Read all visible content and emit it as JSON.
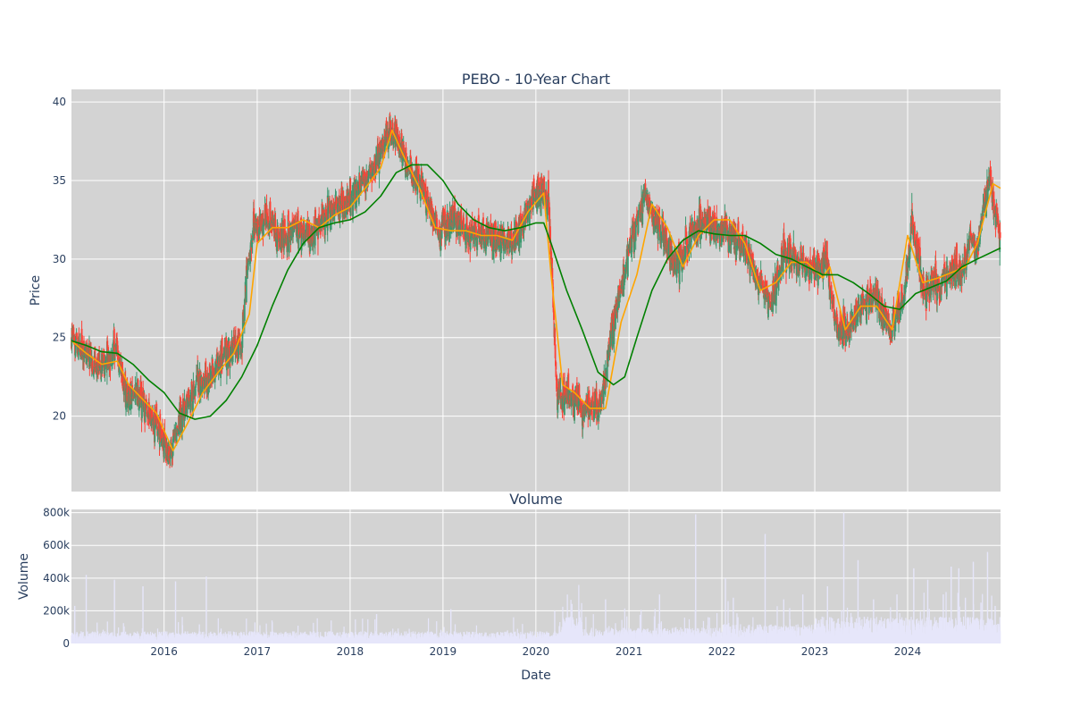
{
  "chart_data": [
    {
      "type": "candlestick",
      "title": "PEBO - 10-Year Chart",
      "ylabel": "Price",
      "ylim": [
        15.2,
        40.8
      ],
      "yticks": [
        20,
        25,
        30,
        35,
        40
      ],
      "xlim": [
        "2015-01-02",
        "2024-12-31"
      ],
      "xticks": [
        "2016",
        "2017",
        "2018",
        "2019",
        "2020",
        "2021",
        "2022",
        "2023",
        "2024"
      ],
      "grid": true,
      "increasing_color": "#3d9970",
      "decreasing_color": "#ff4136",
      "series": [
        {
          "name": "",
          "kind": "price_close",
          "x": [
            "2015-01-02",
            "2015-03-01",
            "2015-05-01",
            "2015-07-01",
            "2015-08-01",
            "2015-10-01",
            "2015-12-01",
            "2016-01-20",
            "2016-03-01",
            "2016-05-01",
            "2016-07-01",
            "2016-09-01",
            "2016-11-01",
            "2016-11-15",
            "2016-12-15",
            "2017-02-01",
            "2017-04-01",
            "2017-06-01",
            "2017-08-01",
            "2017-10-01",
            "2017-12-01",
            "2018-02-01",
            "2018-04-01",
            "2018-06-01",
            "2018-07-01",
            "2018-08-15",
            "2018-10-15",
            "2018-12-20",
            "2019-02-01",
            "2019-04-01",
            "2019-06-01",
            "2019-08-01",
            "2019-10-01",
            "2019-12-01",
            "2020-01-15",
            "2020-02-20",
            "2020-03-10",
            "2020-03-23",
            "2020-05-01",
            "2020-07-01",
            "2020-09-01",
            "2020-09-25",
            "2020-11-01",
            "2021-01-01",
            "2021-03-01",
            "2021-03-15",
            "2021-05-01",
            "2021-07-01",
            "2021-08-01",
            "2021-10-01",
            "2021-12-01",
            "2022-02-01",
            "2022-04-01",
            "2022-06-01",
            "2022-07-15",
            "2022-09-01",
            "2022-11-01",
            "2023-01-01",
            "2023-02-15",
            "2023-04-01",
            "2023-05-15",
            "2023-07-01",
            "2023-09-01",
            "2023-10-25",
            "2023-12-15",
            "2024-01-20",
            "2024-03-01",
            "2024-05-01",
            "2024-07-01",
            "2024-08-01",
            "2024-09-01",
            "2024-10-01",
            "2024-11-15",
            "2024-12-31"
          ],
          "y": [
            25.0,
            23.8,
            23.2,
            24.3,
            21.5,
            21.0,
            19.5,
            17.5,
            19.8,
            21.8,
            22.5,
            24.3,
            24.5,
            28.0,
            31.8,
            32.5,
            31.5,
            31.8,
            31.5,
            33.0,
            33.5,
            34.5,
            35.8,
            37.8,
            38.0,
            36.0,
            34.5,
            31.5,
            32.5,
            31.8,
            31.5,
            31.5,
            31.0,
            33.0,
            34.5,
            33.8,
            27.0,
            21.5,
            21.5,
            20.5,
            20.5,
            22.0,
            26.0,
            30.5,
            34.0,
            33.5,
            32.0,
            29.5,
            30.5,
            32.5,
            32.0,
            31.5,
            30.5,
            28.5,
            27.0,
            30.5,
            29.5,
            29.5,
            30.0,
            25.5,
            25.5,
            27.0,
            27.5,
            25.5,
            27.5,
            32.5,
            28.0,
            28.5,
            29.5,
            29.2,
            31.5,
            30.5,
            35.2,
            31.5
          ]
        },
        {
          "name": "",
          "kind": "short_ma",
          "color": "#ffa500",
          "x": [
            "2015-01-02",
            "2015-03-01",
            "2015-05-01",
            "2015-07-01",
            "2015-08-15",
            "2015-10-01",
            "2015-12-01",
            "2016-02-05",
            "2016-04-01",
            "2016-06-01",
            "2016-08-01",
            "2016-10-01",
            "2016-12-01",
            "2017-01-01",
            "2017-03-01",
            "2017-05-01",
            "2017-07-01",
            "2017-09-01",
            "2017-11-01",
            "2018-01-01",
            "2018-03-01",
            "2018-05-01",
            "2018-06-15",
            "2018-08-01",
            "2018-10-01",
            "2018-12-01",
            "2019-02-01",
            "2019-04-01",
            "2019-06-01",
            "2019-08-01",
            "2019-10-01",
            "2019-12-01",
            "2020-02-01",
            "2020-03-01",
            "2020-04-15",
            "2020-06-01",
            "2020-08-01",
            "2020-10-01",
            "2020-12-01",
            "2021-02-01",
            "2021-04-01",
            "2021-06-01",
            "2021-08-01",
            "2021-10-01",
            "2021-12-01",
            "2022-02-01",
            "2022-04-01",
            "2022-06-01",
            "2022-08-01",
            "2022-10-01",
            "2022-12-01",
            "2023-02-01",
            "2023-03-01",
            "2023-05-01",
            "2023-07-01",
            "2023-09-01",
            "2023-11-01",
            "2024-01-01",
            "2024-03-01",
            "2024-05-01",
            "2024-07-01",
            "2024-08-15",
            "2024-10-01",
            "2024-12-01",
            "2024-12-31"
          ],
          "y": [
            24.8,
            24.0,
            23.3,
            23.5,
            22.0,
            21.2,
            20.2,
            17.8,
            19.5,
            21.5,
            22.8,
            24.0,
            26.5,
            31.0,
            32.0,
            32.0,
            32.5,
            32.0,
            32.8,
            33.3,
            34.5,
            35.8,
            38.2,
            36.5,
            34.5,
            32.0,
            31.8,
            31.8,
            31.5,
            31.5,
            31.2,
            33.0,
            34.2,
            29.0,
            22.0,
            21.5,
            20.5,
            20.5,
            26.0,
            29.0,
            33.5,
            32.0,
            29.5,
            31.5,
            32.5,
            32.5,
            31.0,
            28.0,
            28.5,
            29.8,
            29.8,
            28.8,
            29.5,
            25.5,
            27.0,
            27.0,
            25.5,
            31.5,
            28.5,
            28.8,
            29.2,
            29.5,
            31.0,
            34.8,
            34.5
          ]
        },
        {
          "name": "",
          "kind": "long_ma",
          "color": "#008000",
          "x": [
            "2015-01-02",
            "2015-03-01",
            "2015-05-01",
            "2015-07-01",
            "2015-09-01",
            "2015-11-01",
            "2016-01-01",
            "2016-03-01",
            "2016-05-01",
            "2016-07-01",
            "2016-09-01",
            "2016-11-01",
            "2017-01-01",
            "2017-03-01",
            "2017-05-01",
            "2017-07-01",
            "2017-09-01",
            "2017-11-01",
            "2018-01-01",
            "2018-03-01",
            "2018-05-01",
            "2018-07-01",
            "2018-09-01",
            "2018-11-01",
            "2019-01-01",
            "2019-03-01",
            "2019-05-01",
            "2019-07-01",
            "2019-09-01",
            "2019-11-01",
            "2020-01-01",
            "2020-02-01",
            "2020-03-01",
            "2020-05-01",
            "2020-07-01",
            "2020-09-01",
            "2020-11-01",
            "2020-12-15",
            "2021-02-01",
            "2021-04-01",
            "2021-06-01",
            "2021-08-01",
            "2021-10-01",
            "2021-12-01",
            "2022-02-01",
            "2022-04-01",
            "2022-06-01",
            "2022-08-01",
            "2022-10-01",
            "2022-12-01",
            "2023-02-01",
            "2023-04-01",
            "2023-06-01",
            "2023-08-01",
            "2023-10-01",
            "2023-12-01",
            "2024-02-01",
            "2024-04-01",
            "2024-06-01",
            "2024-08-01",
            "2024-10-01",
            "2024-12-31"
          ],
          "y": [
            24.8,
            24.5,
            24.1,
            24.0,
            23.3,
            22.3,
            21.5,
            20.2,
            19.8,
            20.0,
            21.0,
            22.5,
            24.5,
            27.0,
            29.3,
            31.0,
            32.0,
            32.3,
            32.5,
            33.0,
            34.0,
            35.5,
            36.0,
            36.0,
            35.0,
            33.5,
            32.5,
            32.0,
            31.8,
            32.0,
            32.3,
            32.3,
            31.0,
            28.0,
            25.5,
            22.8,
            22.0,
            22.5,
            25.0,
            28.0,
            30.0,
            31.2,
            31.8,
            31.6,
            31.5,
            31.5,
            31.0,
            30.3,
            30.0,
            29.5,
            29.0,
            29.0,
            28.5,
            27.8,
            27.0,
            26.8,
            27.8,
            28.2,
            28.6,
            29.5,
            30.0,
            30.7
          ]
        }
      ]
    },
    {
      "type": "bar",
      "title": "Volume",
      "ylabel": "Volume",
      "xlabel": "Date",
      "ylim": [
        0,
        820000
      ],
      "yticks": [
        0,
        200000,
        400000,
        600000,
        800000
      ],
      "ytick_labels": [
        "0",
        "200k",
        "400k",
        "600k",
        "800k"
      ],
      "xticks": [
        "2016",
        "2017",
        "2018",
        "2019",
        "2020",
        "2021",
        "2022",
        "2023",
        "2024"
      ],
      "grid": true,
      "bar_color": "#e6e6fa",
      "series": [
        {
          "name": "",
          "x": [
            "2015-01-15",
            "2015-03-01",
            "2015-06-20",
            "2015-10-10",
            "2016-02-15",
            "2016-06-15",
            "2017-03-01",
            "2018-04-15",
            "2019-02-01",
            "2020-03-15",
            "2020-05-01",
            "2020-10-01",
            "2021-05-01",
            "2021-09-20",
            "2022-01-15",
            "2022-02-15",
            "2022-06-20",
            "2022-09-01",
            "2022-11-15",
            "2023-02-20",
            "2023-04-25",
            "2023-06-20",
            "2023-08-20",
            "2023-11-20",
            "2024-01-25",
            "2024-03-20",
            "2024-05-20",
            "2024-06-20",
            "2024-07-20",
            "2024-08-15",
            "2024-09-15",
            "2024-10-15",
            "2024-11-10",
            "2024-12-10"
          ],
          "values": [
            230000,
            420000,
            390000,
            350000,
            380000,
            410000,
            130000,
            180000,
            210000,
            200000,
            160000,
            270000,
            300000,
            790000,
            400000,
            280000,
            670000,
            270000,
            300000,
            350000,
            800000,
            510000,
            270000,
            300000,
            460000,
            390000,
            300000,
            470000,
            460000,
            280000,
            500000,
            250000,
            560000,
            230000
          ]
        }
      ]
    }
  ]
}
